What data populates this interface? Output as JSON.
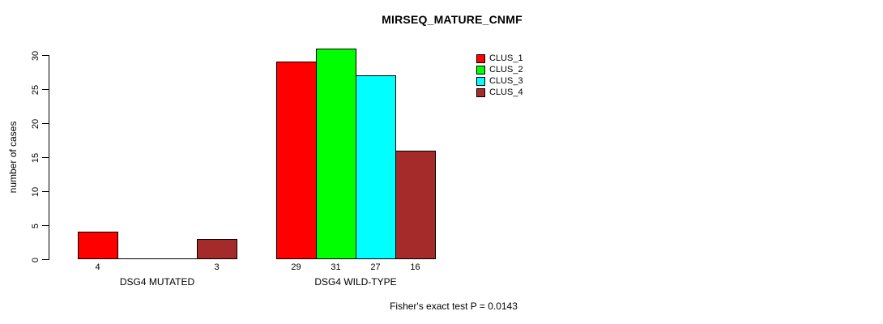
{
  "chart_data": {
    "type": "bar",
    "title": "MIRSEQ_MATURE_CNMF",
    "ylabel": "number of cases",
    "xlabel": "",
    "ylim": [
      0,
      30
    ],
    "ytick_step": 5,
    "grid": false,
    "legend_position": "top-right",
    "categories": [
      "DSG4 MUTATED",
      "DSG4 WILD-TYPE"
    ],
    "series": [
      {
        "name": "CLUS_1",
        "color": "#FF0000",
        "values": [
          4,
          29
        ]
      },
      {
        "name": "CLUS_2",
        "color": "#00FF00",
        "values": [
          0,
          31
        ]
      },
      {
        "name": "CLUS_3",
        "color": "#00FFFF",
        "values": [
          0,
          27
        ]
      },
      {
        "name": "CLUS_4",
        "color": "#A52A2A",
        "values": [
          3,
          16
        ]
      }
    ],
    "bar_value_labels": {
      "DSG4 MUTATED": [
        4,
        null,
        null,
        3
      ],
      "DSG4 WILD-TYPE": [
        29,
        31,
        27,
        16
      ]
    },
    "annotation": "Fisher's exact test P = 0.0143"
  },
  "colors": {
    "background": "#FFFFFF",
    "axis": "#000000",
    "bar_border": "#000000",
    "text": "#000000"
  }
}
